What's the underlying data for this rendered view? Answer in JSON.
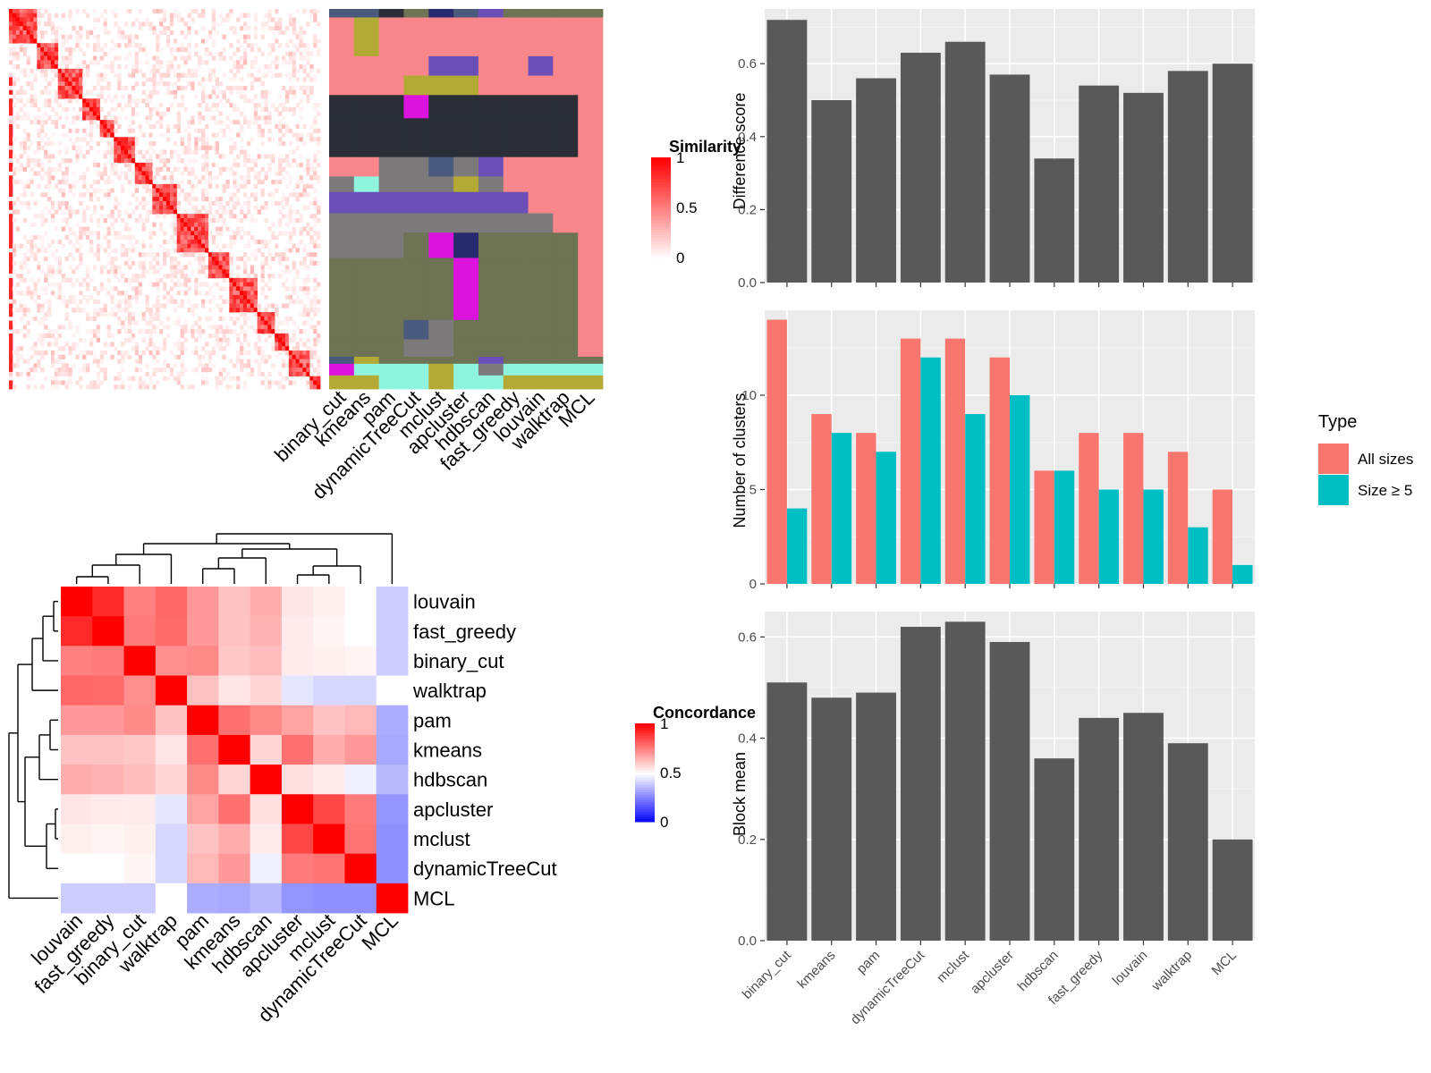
{
  "chart_data": [
    {
      "type": "heatmap",
      "panel": "similarity-matrix",
      "legend_title": "Similarity",
      "legend_ticks": [
        "1",
        "0.5",
        "0"
      ],
      "legend_range": [
        0,
        1
      ],
      "colors": {
        "low": "#ffffff",
        "high": "#ff0000"
      },
      "block_sizes": [
        8,
        6,
        7,
        5,
        4,
        6,
        5,
        7,
        9,
        6,
        8,
        5,
        4,
        6,
        3
      ]
    },
    {
      "type": "heatmap",
      "panel": "cluster-assignment-bands",
      "methods": [
        "binary_cut",
        "kmeans",
        "pam",
        "dynamicTreeCut",
        "mclust",
        "apcluster",
        "hdbscan",
        "fast_greedy",
        "louvain",
        "walktrap",
        "MCL"
      ]
    },
    {
      "type": "heatmap",
      "panel": "concordance-matrix",
      "legend_title": "Concordance",
      "legend_ticks": [
        "1",
        "0.5",
        "0"
      ],
      "legend_range": [
        0,
        1
      ],
      "colors": {
        "low": "#0000ff",
        "mid": "#ffffff",
        "high": "#ff0000"
      },
      "rows": [
        "louvain",
        "fast_greedy",
        "binary_cut",
        "walktrap",
        "pam",
        "kmeans",
        "hdbscan",
        "apcluster",
        "mclust",
        "dynamicTreeCut",
        "MCL"
      ],
      "columns": [
        "louvain",
        "fast_greedy",
        "binary_cut",
        "walktrap",
        "pam",
        "kmeans",
        "hdbscan",
        "apcluster",
        "mclust",
        "dynamicTreeCut",
        "MCL"
      ],
      "values": [
        [
          1.0,
          0.92,
          0.75,
          0.8,
          0.7,
          0.62,
          0.66,
          0.55,
          0.53,
          0.5,
          0.4
        ],
        [
          0.92,
          1.0,
          0.76,
          0.79,
          0.7,
          0.62,
          0.65,
          0.54,
          0.52,
          0.5,
          0.4
        ],
        [
          0.75,
          0.76,
          1.0,
          0.72,
          0.73,
          0.61,
          0.63,
          0.54,
          0.53,
          0.52,
          0.4
        ],
        [
          0.8,
          0.79,
          0.72,
          1.0,
          0.62,
          0.55,
          0.58,
          0.45,
          0.42,
          0.42,
          0.5
        ],
        [
          0.7,
          0.7,
          0.73,
          0.62,
          1.0,
          0.78,
          0.73,
          0.68,
          0.62,
          0.64,
          0.34
        ],
        [
          0.62,
          0.62,
          0.61,
          0.55,
          0.78,
          1.0,
          0.58,
          0.78,
          0.66,
          0.7,
          0.33
        ],
        [
          0.66,
          0.65,
          0.63,
          0.58,
          0.73,
          0.58,
          1.0,
          0.56,
          0.54,
          0.47,
          0.36
        ],
        [
          0.55,
          0.54,
          0.54,
          0.45,
          0.68,
          0.78,
          0.56,
          1.0,
          0.86,
          0.76,
          0.29
        ],
        [
          0.53,
          0.52,
          0.53,
          0.42,
          0.62,
          0.66,
          0.54,
          0.86,
          1.0,
          0.77,
          0.28
        ],
        [
          0.5,
          0.5,
          0.52,
          0.42,
          0.64,
          0.7,
          0.47,
          0.76,
          0.77,
          1.0,
          0.28
        ],
        [
          0.4,
          0.4,
          0.4,
          0.5,
          0.34,
          0.33,
          0.36,
          0.29,
          0.28,
          0.28,
          1.0
        ]
      ]
    },
    {
      "type": "bar",
      "panel": "difference-score",
      "categories": [
        "binary_cut",
        "kmeans",
        "pam",
        "dynamicTreeCut",
        "mclust",
        "apcluster",
        "hdbscan",
        "fast_greedy",
        "louvain",
        "walktrap",
        "MCL"
      ],
      "values": [
        0.72,
        0.5,
        0.56,
        0.63,
        0.66,
        0.57,
        0.34,
        0.54,
        0.52,
        0.58,
        0.6
      ],
      "ylabel": "Difference score",
      "ylim": [
        0,
        0.75
      ],
      "yticks": [
        "0.0",
        "0.2",
        "0.4",
        "0.6"
      ],
      "grid": true
    },
    {
      "type": "bar",
      "panel": "number-of-clusters",
      "categories": [
        "binary_cut",
        "kmeans",
        "pam",
        "dynamicTreeCut",
        "mclust",
        "apcluster",
        "hdbscan",
        "fast_greedy",
        "louvain",
        "walktrap",
        "MCL"
      ],
      "series": [
        {
          "name": "All sizes",
          "color": "#F8766D",
          "values": [
            14,
            9,
            8,
            13,
            13,
            12,
            6,
            8,
            8,
            7,
            5
          ]
        },
        {
          "name": "Size ≥ 5",
          "color": "#00BFC4",
          "values": [
            4,
            8,
            7,
            12,
            9,
            10,
            6,
            5,
            5,
            3,
            1
          ]
        }
      ],
      "ylabel": "Number of clusters",
      "ylim": [
        0,
        14.5
      ],
      "yticks": [
        "0",
        "5",
        "10"
      ],
      "legend_title": "Type",
      "legend_position": "right",
      "grid": true
    },
    {
      "type": "bar",
      "panel": "block-mean",
      "categories": [
        "binary_cut",
        "kmeans",
        "pam",
        "dynamicTreeCut",
        "mclust",
        "apcluster",
        "hdbscan",
        "fast_greedy",
        "louvain",
        "walktrap",
        "MCL"
      ],
      "values": [
        0.51,
        0.48,
        0.49,
        0.62,
        0.63,
        0.59,
        0.36,
        0.44,
        0.45,
        0.39,
        0.2
      ],
      "ylabel": "Block mean",
      "ylim": [
        0,
        0.65
      ],
      "yticks": [
        "0.0",
        "0.2",
        "0.4",
        "0.6"
      ],
      "grid": true
    }
  ]
}
